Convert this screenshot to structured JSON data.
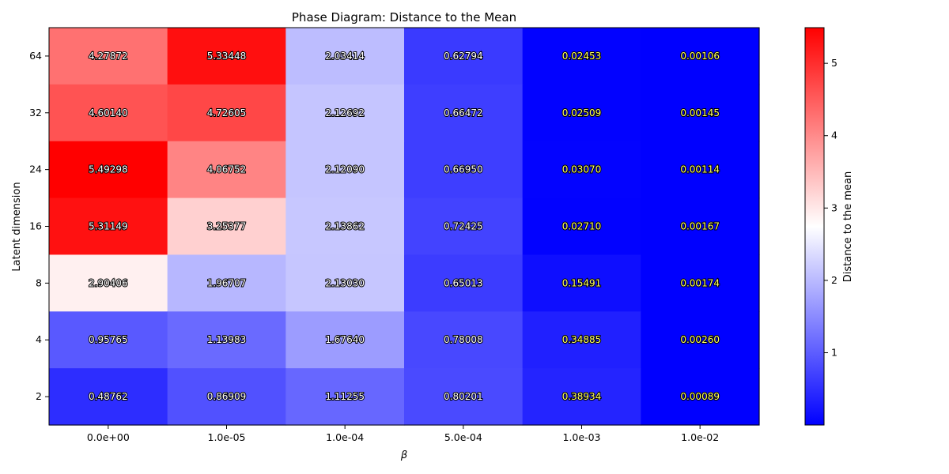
{
  "chart_data": {
    "type": "heatmap",
    "title": "Phase Diagram: Distance to the Mean",
    "xlabel": "β",
    "ylabel": "Latent dimension",
    "x_categories": [
      "0.0e+00",
      "1.0e-05",
      "1.0e-04",
      "5.0e-04",
      "1.0e-03",
      "1.0e-02"
    ],
    "y_categories": [
      "64",
      "32",
      "24",
      "16",
      "8",
      "4",
      "2"
    ],
    "values": [
      [
        4.27872,
        5.33448,
        2.03414,
        0.62794,
        0.02453,
        0.00106
      ],
      [
        4.6014,
        4.72605,
        2.12692,
        0.66472,
        0.02509,
        0.00145
      ],
      [
        5.49298,
        4.06752,
        2.1209,
        0.6695,
        0.0307,
        0.00114
      ],
      [
        5.31149,
        3.25377,
        2.13862,
        0.72425,
        0.0271,
        0.00167
      ],
      [
        2.90406,
        1.96707,
        2.1303,
        0.65013,
        0.15491,
        0.00174
      ],
      [
        0.95765,
        1.13983,
        1.6764,
        0.78008,
        0.34885,
        0.0026
      ],
      [
        0.48762,
        0.86909,
        1.11255,
        0.80201,
        0.38934,
        0.00089
      ]
    ],
    "value_labels": [
      [
        "4.27872",
        "5.33448",
        "2.03414",
        "0.62794",
        "0.02453",
        "0.00106"
      ],
      [
        "4.60140",
        "4.72605",
        "2.12692",
        "0.66472",
        "0.02509",
        "0.00145"
      ],
      [
        "5.49298",
        "4.06752",
        "2.12090",
        "0.66950",
        "0.03070",
        "0.00114"
      ],
      [
        "5.31149",
        "3.25377",
        "2.13862",
        "0.72425",
        "0.02710",
        "0.00167"
      ],
      [
        "2.90406",
        "1.96707",
        "2.13030",
        "0.65013",
        "0.15491",
        "0.00174"
      ],
      [
        "0.95765",
        "1.13983",
        "1.67640",
        "0.78008",
        "0.34885",
        "0.00260"
      ],
      [
        "0.48762",
        "0.86909",
        "1.11255",
        "0.80201",
        "0.38934",
        "0.00089"
      ]
    ],
    "colormap": "bwr",
    "colors": {
      "low": "#0000ff",
      "mid": "#ffffff",
      "high": "#ff0000"
    },
    "colorbar": {
      "label": "Distance to the mean",
      "range": [
        0.00089,
        5.49298
      ],
      "ticks": [
        "1",
        "2",
        "3",
        "4",
        "5"
      ]
    },
    "annotation_colors": {
      "light_columns": "#ffffff",
      "dark_columns": "#ffff66"
    },
    "grid": false
  }
}
